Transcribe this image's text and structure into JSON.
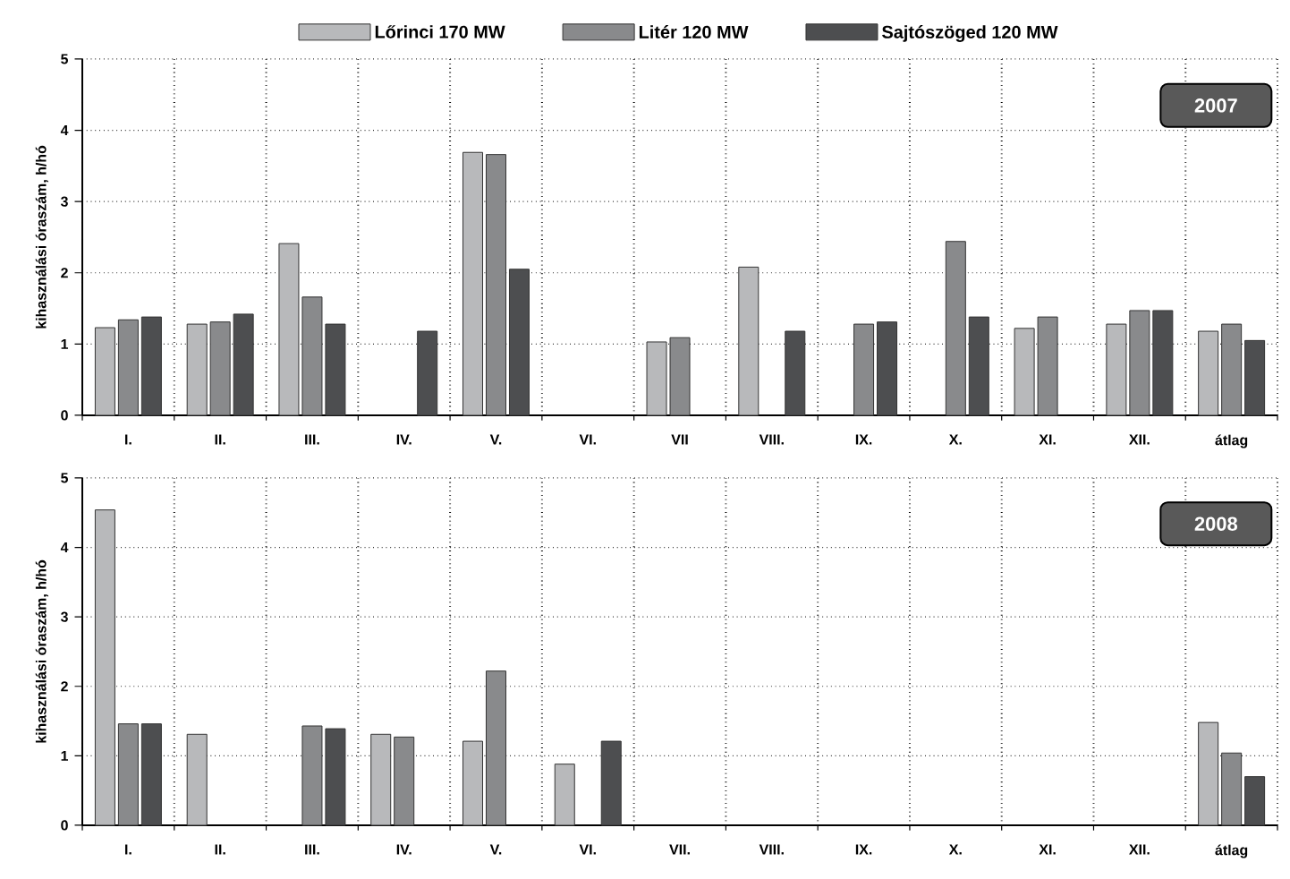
{
  "chart_data": [
    {
      "type": "bar",
      "title": "2007",
      "ylabel": "kihasználási óraszám, h/hó",
      "categories": [
        "I.",
        "II.",
        "III.",
        "IV.",
        "V.",
        "VI.",
        "VII",
        "VIII.",
        "IX.",
        "X.",
        "XI.",
        "XII.",
        "átlag"
      ],
      "series": [
        {
          "name": "Lőrinci 170 MW",
          "color": "#b8b9bb",
          "values": [
            1.23,
            1.28,
            2.41,
            null,
            3.69,
            null,
            1.03,
            2.08,
            null,
            null,
            1.22,
            1.28,
            1.18
          ]
        },
        {
          "name": "Litér 120 MW",
          "color": "#898a8c",
          "values": [
            1.34,
            1.31,
            1.66,
            null,
            3.66,
            null,
            1.09,
            null,
            1.28,
            2.44,
            1.38,
            1.47,
            1.28
          ]
        },
        {
          "name": "Sajtószöged 120 MW",
          "color": "#4d4e50",
          "values": [
            1.38,
            1.42,
            1.28,
            1.18,
            2.05,
            null,
            null,
            1.18,
            1.31,
            1.38,
            null,
            1.47,
            1.05
          ]
        }
      ],
      "ylim": [
        0,
        5
      ],
      "yticks": [
        0,
        1,
        2,
        3,
        4,
        5
      ],
      "grid": true,
      "legend": "top"
    },
    {
      "type": "bar",
      "title": "2008",
      "ylabel": "kihasználási óraszám, h/hó",
      "categories": [
        "I.",
        "II.",
        "III.",
        "IV.",
        "V.",
        "VI.",
        "VII.",
        "VIII.",
        "IX.",
        "X.",
        "XI.",
        "XII.",
        "átlag"
      ],
      "series": [
        {
          "color": "#b8b9bb",
          "values": [
            4.54,
            1.31,
            null,
            1.31,
            1.21,
            0.88,
            null,
            null,
            null,
            null,
            null,
            null,
            1.48
          ]
        },
        {
          "color": "#898a8c",
          "values": [
            1.46,
            null,
            1.43,
            1.27,
            2.22,
            null,
            null,
            null,
            null,
            null,
            null,
            null,
            1.04
          ]
        },
        {
          "color": "#4d4e50",
          "values": [
            1.46,
            null,
            1.39,
            null,
            null,
            1.21,
            null,
            null,
            null,
            null,
            null,
            null,
            0.7
          ]
        }
      ],
      "ylim": [
        0,
        5
      ],
      "yticks": [
        0,
        1,
        2,
        3,
        4,
        5
      ],
      "grid": true
    }
  ]
}
